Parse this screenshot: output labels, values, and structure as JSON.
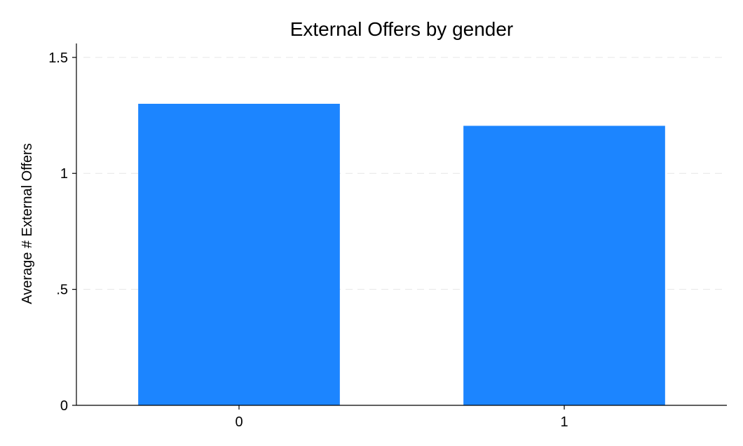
{
  "chart_data": {
    "type": "bar",
    "title": "External Offers by gender",
    "xlabel": "",
    "ylabel": "Average # External Offers",
    "categories": [
      "0",
      "1"
    ],
    "values": [
      1.3,
      1.205
    ],
    "ylim": [
      0,
      1.56
    ],
    "yticks": [
      0,
      0.5,
      1,
      1.5
    ],
    "ytick_labels": [
      "0",
      ".5",
      "1",
      "1.5"
    ],
    "grid": true,
    "legend": "none",
    "bar_color": "#1c85ff"
  }
}
